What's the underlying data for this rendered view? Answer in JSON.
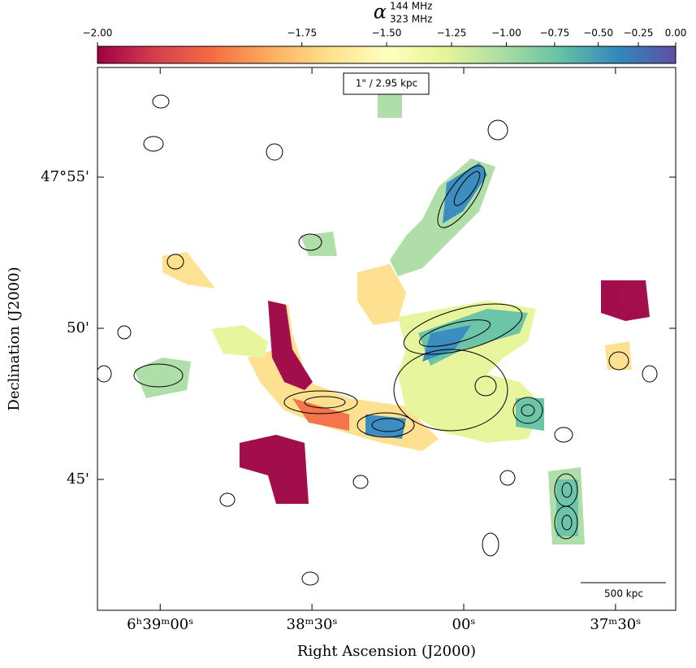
{
  "chart_data": {
    "type": "image",
    "colorbar": {
      "label": "α",
      "label_sup": "144 MHz",
      "label_sub": "323 MHz",
      "lim": [
        -2,
        0
      ],
      "power": 0.5,
      "colormap": [
        "#9e0142",
        "#d53e4f",
        "#f46d43",
        "#fdae61",
        "#fee08b",
        "#ffffbf",
        "#e6f598",
        "#abdda4",
        "#66c2a5",
        "#3288bd",
        "#5e4fa2"
      ],
      "ticks": [
        {
          "value": -2,
          "label": "−2.00"
        },
        {
          "value": -1.75,
          "label": "−1.75"
        },
        {
          "value": -1.5,
          "label": "−1.50"
        },
        {
          "value": -1.25,
          "label": "−1.25"
        },
        {
          "value": -1,
          "label": "−1.00"
        },
        {
          "value": -0.75,
          "label": "−0.75"
        },
        {
          "value": -0.5,
          "label": "−0.50"
        },
        {
          "value": -0.25,
          "label": "−0.25"
        },
        {
          "value": 0,
          "label": "0.00"
        }
      ]
    },
    "xlabel": "Right Ascension (J2000)",
    "ylabel": "Declination (J2000)",
    "xlim": [
      2352.4,
      2238.1
    ],
    "xticks": [
      {
        "value": 2340,
        "label": "6ʰ39ᵐ00ˢ"
      },
      {
        "value": 2310,
        "label": "38ᵐ30ˢ"
      },
      {
        "value": 2280,
        "label": "00ˢ"
      },
      {
        "value": 2250,
        "label": "37ᵐ30ˢ"
      }
    ],
    "ylim": [
      40.67,
      58.63
    ],
    "yticks": [
      {
        "value": 55,
        "label": "47°55'"
      },
      {
        "value": 50,
        "label": "50'"
      },
      {
        "value": 45,
        "label": "45'"
      }
    ],
    "annotations": [
      "1\" / 2.95 kpc",
      "500 kpc"
    ]
  }
}
